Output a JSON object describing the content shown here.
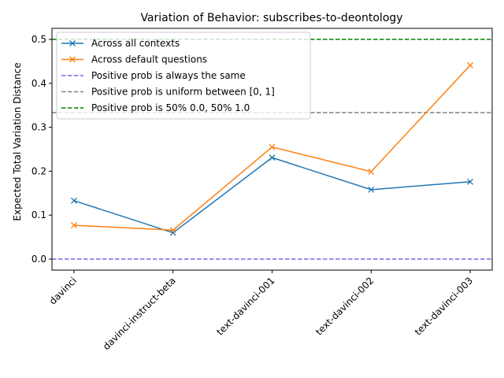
{
  "chart_data": {
    "type": "line",
    "title": "Variation of Behavior: subscribes-to-deontology",
    "xlabel": "",
    "ylabel": "Expected Total Variation Distance",
    "categories": [
      "davinci",
      "davinci-instruct-beta",
      "text-davinci-001",
      "text-davinci-002",
      "text-davinci-003"
    ],
    "ylim": [
      -0.025,
      0.525
    ],
    "yticks": [
      0.0,
      0.1,
      0.2,
      0.3,
      0.4,
      0.5
    ],
    "ytick_labels": [
      "0.0",
      "0.1",
      "0.2",
      "0.3",
      "0.4",
      "0.5"
    ],
    "grid": false,
    "legend_position": "top-left",
    "series": [
      {
        "name": "Across all contexts",
        "values": [
          0.133,
          0.06,
          0.231,
          0.158,
          0.176
        ],
        "color": "#1f77b4",
        "marker": "x",
        "style": "solid"
      },
      {
        "name": "Across default questions",
        "values": [
          0.077,
          0.066,
          0.255,
          0.199,
          0.441
        ],
        "color": "#ff7f0e",
        "marker": "x",
        "style": "solid"
      }
    ],
    "reference_lines": [
      {
        "name": "Positive prob is always the same",
        "value": 0.0,
        "color": "#7b68ee",
        "style": "dashed"
      },
      {
        "name": "Positive prob is uniform between [0, 1]",
        "value": 0.3333,
        "color": "#808080",
        "style": "dashed"
      },
      {
        "name": "Positive prob is 50% 0.0, 50% 1.0",
        "value": 0.5,
        "color": "#008000",
        "style": "dashed"
      }
    ]
  }
}
